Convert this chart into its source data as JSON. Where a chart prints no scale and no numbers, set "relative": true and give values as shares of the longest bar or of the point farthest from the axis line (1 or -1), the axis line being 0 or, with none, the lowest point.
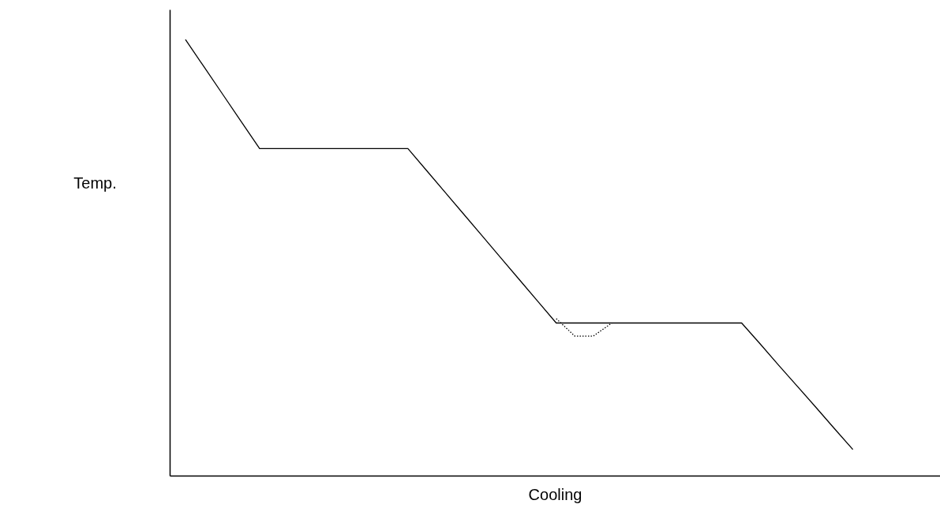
{
  "chart_data": {
    "type": "line",
    "relative": true,
    "xlabel": "Cooling",
    "ylabel": "Temp.",
    "categories": [
      null,
      null,
      null,
      null,
      null,
      null,
      null,
      null,
      null,
      null,
      null,
      null,
      null,
      null,
      null,
      null,
      null,
      null,
      null,
      null,
      null,
      null,
      null,
      null,
      null,
      null,
      null,
      null,
      null,
      null,
      null,
      null,
      null,
      null,
      null,
      null,
      null
    ],
    "series": [
      {
        "color": "#000000",
        "line_style": "solid",
        "values": [
          1,
          0.9375,
          0.875,
          0.8125,
          0.75,
          0.75,
          0.75,
          0.75,
          0.75,
          0.75,
          0.75,
          0.75,
          0.75,
          0.7,
          0.65,
          0.6,
          0.55,
          0.5,
          0.45,
          0.4,
          0.35,
          0.35,
          0.35,
          0.35,
          0.35,
          0.35,
          0.35,
          0.35,
          0.35,
          0.35,
          0.35,
          0.302,
          0.253,
          0.205,
          0.157,
          0.108,
          0.06
        ]
      },
      {
        "color": "#000000",
        "line_style": "dotted",
        "values": [
          null,
          null,
          null,
          null,
          null,
          null,
          null,
          null,
          null,
          null,
          null,
          null,
          null,
          null,
          null,
          null,
          null,
          null,
          null,
          null,
          0.36,
          0.32,
          0.32,
          0.35,
          null,
          null,
          null,
          null,
          null,
          null,
          null,
          null,
          null,
          null,
          null,
          null,
          null
        ]
      }
    ],
    "grid": false,
    "marker": "none"
  }
}
